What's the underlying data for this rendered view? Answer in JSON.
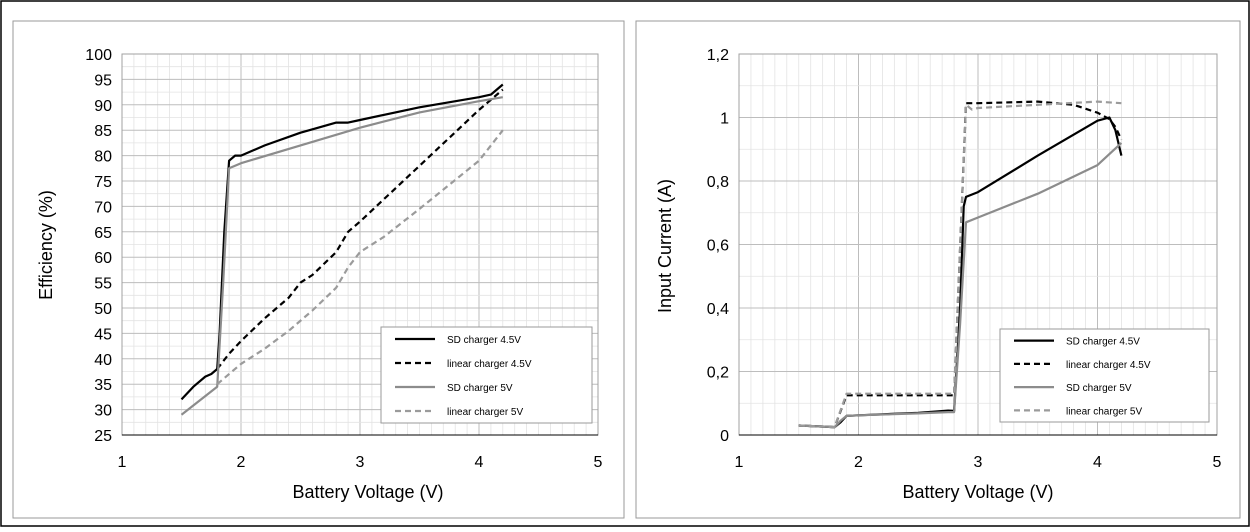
{
  "charts": [
    {
      "key": "efficiency",
      "xticks": [
        "1",
        "2",
        "3",
        "4",
        "5"
      ],
      "yticks": [
        "25",
        "30",
        "35",
        "40",
        "45",
        "50",
        "55",
        "60",
        "65",
        "70",
        "75",
        "80",
        "85",
        "90",
        "95",
        "100"
      ],
      "xlabel": "Battery Voltage (V)",
      "ylabel": "Efficiency (%)"
    },
    {
      "key": "input_current",
      "xticks": [
        "1",
        "2",
        "3",
        "4",
        "5"
      ],
      "yticks": [
        "0",
        "0,2",
        "0,4",
        "0,6",
        "0,8",
        "1",
        "1,2"
      ],
      "xlabel": "Battery Voltage (V)",
      "ylabel": "Input Current (A)"
    }
  ],
  "chart_data": [
    {
      "type": "line",
      "title": "",
      "xlabel": "Battery Voltage (V)",
      "ylabel": "Efficiency (%)",
      "xlim": [
        1,
        5
      ],
      "ylim": [
        25,
        100
      ],
      "grid": true,
      "legend": "bottom-right",
      "series": [
        {
          "name": "SD charger 4.5V",
          "color": "#000000",
          "dash": "solid",
          "x": [
            1.5,
            1.6,
            1.7,
            1.75,
            1.8,
            1.82,
            1.86,
            1.9,
            1.95,
            2.0,
            2.2,
            2.5,
            2.8,
            2.9,
            3.0,
            3.5,
            4.0,
            4.1,
            4.2
          ],
          "y": [
            32,
            34.5,
            36.5,
            37,
            38,
            45,
            65,
            79,
            80,
            80,
            82,
            84.5,
            86.5,
            86.5,
            87,
            89.5,
            91.5,
            92,
            94
          ]
        },
        {
          "name": "linear charger 4.5V",
          "color": "#000000",
          "dash": "dashed",
          "x": [
            1.8,
            1.9,
            2.0,
            2.2,
            2.4,
            2.5,
            2.6,
            2.8,
            2.9,
            3.0,
            3.5,
            4.0,
            4.2
          ],
          "y": [
            38,
            41,
            43.5,
            48,
            52,
            55,
            56.5,
            61,
            65,
            67,
            78,
            89,
            93
          ]
        },
        {
          "name": "SD charger 5V",
          "color": "#8c8c8c",
          "dash": "solid",
          "x": [
            1.5,
            1.8,
            1.85,
            1.9,
            2.0,
            2.5,
            3.0,
            3.5,
            4.0,
            4.2
          ],
          "y": [
            29,
            34.5,
            55,
            77.5,
            78.5,
            82,
            85.5,
            88.5,
            90.7,
            91.5
          ]
        },
        {
          "name": "linear charger 5V",
          "color": "#9b9b9b",
          "dash": "dashed",
          "x": [
            1.8,
            2.0,
            2.2,
            2.4,
            2.6,
            2.8,
            2.9,
            3.0,
            3.2,
            3.5,
            4.0,
            4.2
          ],
          "y": [
            35,
            39,
            42,
            45.5,
            49.5,
            54,
            58,
            61,
            64,
            69.5,
            79,
            85
          ]
        }
      ]
    },
    {
      "type": "line",
      "title": "",
      "xlabel": "Battery Voltage (V)",
      "ylabel": "Input Current (A)",
      "xlim": [
        1,
        5
      ],
      "ylim": [
        0,
        1.2
      ],
      "grid": true,
      "legend": "bottom-right",
      "series": [
        {
          "name": "SD charger 4.5V",
          "color": "#000000",
          "dash": "solid",
          "x": [
            1.5,
            1.8,
            1.85,
            1.9,
            2.0,
            2.5,
            2.75,
            2.8,
            2.85,
            2.88,
            2.9,
            3.0,
            3.5,
            4.0,
            4.1,
            4.15,
            4.2
          ],
          "y": [
            0.03,
            0.025,
            0.04,
            0.06,
            0.062,
            0.07,
            0.077,
            0.076,
            0.4,
            0.72,
            0.75,
            0.765,
            0.88,
            0.99,
            1.0,
            0.96,
            0.88
          ]
        },
        {
          "name": "linear charger 4.5V",
          "color": "#000000",
          "dash": "dashed",
          "x": [
            1.5,
            1.8,
            1.9,
            2.0,
            2.5,
            2.8,
            2.9,
            3.0,
            3.5,
            3.8,
            4.0,
            4.1,
            4.15,
            4.2
          ],
          "y": [
            0.03,
            0.025,
            0.125,
            0.125,
            0.125,
            0.125,
            1.045,
            1.045,
            1.05,
            1.04,
            1.015,
            0.995,
            0.97,
            0.93
          ]
        },
        {
          "name": "SD charger 5V",
          "color": "#8c8c8c",
          "dash": "solid",
          "x": [
            1.5,
            1.8,
            1.85,
            1.9,
            2.0,
            2.5,
            2.75,
            2.8,
            2.85,
            2.9,
            3.0,
            3.5,
            4.0,
            4.2
          ],
          "y": [
            0.03,
            0.025,
            0.045,
            0.06,
            0.062,
            0.068,
            0.072,
            0.072,
            0.35,
            0.67,
            0.685,
            0.76,
            0.85,
            0.92
          ]
        },
        {
          "name": "linear charger 5V",
          "color": "#9b9b9b",
          "dash": "dashed",
          "x": [
            1.5,
            1.8,
            1.9,
            2.0,
            2.5,
            2.8,
            2.9,
            2.95,
            3.0,
            3.5,
            4.0,
            4.2
          ],
          "y": [
            0.03,
            0.025,
            0.13,
            0.13,
            0.13,
            0.13,
            1.04,
            1.025,
            1.03,
            1.04,
            1.05,
            1.045
          ]
        }
      ]
    }
  ]
}
